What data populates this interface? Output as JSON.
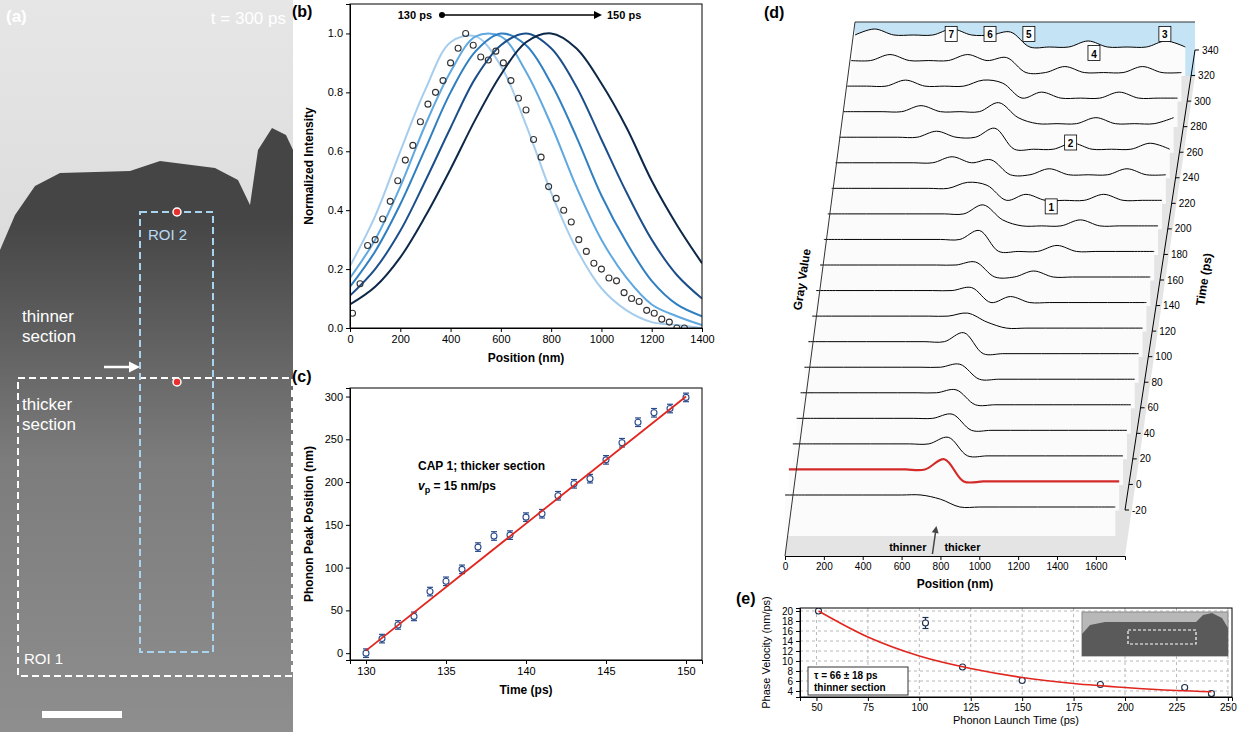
{
  "chart_data": [
    {
      "type": "image",
      "panel": "(a)",
      "annotations": [
        "t = 300 ps",
        "ROI 2",
        "thinner section",
        "thicker section",
        "ROI 1"
      ]
    },
    {
      "type": "line",
      "panel": "(b)",
      "x_label": "Position (nm)",
      "y_label": "Normalized Intensity",
      "xlim": [
        0,
        1400
      ],
      "ylim": [
        0,
        1.1
      ],
      "xticks": [
        0,
        200,
        400,
        600,
        800,
        1000,
        1200,
        1400
      ],
      "yticks": [
        {
          "value": 0,
          "label": "0.0"
        },
        0.2,
        0.4,
        0.6,
        0.8,
        {
          "value": 1,
          "label": "1.0"
        }
      ],
      "annotations": [
        "130 ps",
        "150 ps"
      ],
      "series": [
        {
          "type": "line",
          "line_style": "solid",
          "color": "#a6cdee",
          "x": [
            0,
            100,
            200,
            300,
            400,
            500,
            600,
            700,
            800,
            900,
            1000,
            1100,
            1200,
            1300,
            1400
          ],
          "values": [
            0.21,
            0.38,
            0.6,
            0.81,
            0.97,
            0.99,
            0.89,
            0.69,
            0.46,
            0.27,
            0.135,
            0.06,
            0.02,
            0.01,
            0.0
          ]
        },
        {
          "type": "line",
          "line_style": "solid",
          "color": "#5fa8e0",
          "x": [
            0,
            100,
            200,
            300,
            400,
            500,
            600,
            700,
            800,
            900,
            1000,
            1100,
            1200,
            1300,
            1400
          ],
          "values": [
            0.17,
            0.3,
            0.48,
            0.69,
            0.87,
            0.99,
            0.99,
            0.87,
            0.69,
            0.48,
            0.3,
            0.17,
            0.08,
            0.04,
            0.01
          ]
        },
        {
          "type": "line",
          "line_style": "solid",
          "color": "#2f7fc1",
          "x": [
            0,
            100,
            200,
            300,
            400,
            500,
            600,
            700,
            800,
            900,
            1000,
            1100,
            1200,
            1300,
            1400
          ],
          "values": [
            0.14,
            0.26,
            0.42,
            0.61,
            0.8,
            0.94,
            1.0,
            0.96,
            0.83,
            0.65,
            0.45,
            0.29,
            0.16,
            0.08,
            0.04
          ]
        },
        {
          "type": "line",
          "line_style": "solid",
          "color": "#1c4f8a",
          "x": [
            0,
            100,
            200,
            300,
            400,
            500,
            600,
            700,
            800,
            900,
            1000,
            1100,
            1200,
            1300,
            1400
          ],
          "values": [
            0.11,
            0.2,
            0.33,
            0.5,
            0.68,
            0.85,
            0.96,
            1.0,
            0.95,
            0.82,
            0.64,
            0.46,
            0.3,
            0.18,
            0.1
          ]
        },
        {
          "type": "line",
          "line_style": "solid",
          "color": "#0d2748",
          "x": [
            0,
            100,
            200,
            300,
            400,
            500,
            600,
            700,
            800,
            900,
            1000,
            1100,
            1200,
            1300,
            1400
          ],
          "values": [
            0.08,
            0.14,
            0.24,
            0.38,
            0.54,
            0.71,
            0.86,
            0.97,
            1.0,
            0.95,
            0.83,
            0.68,
            0.5,
            0.35,
            0.22
          ]
        },
        {
          "type": "scatter",
          "marker": "circle",
          "color": "#333333",
          "x": [
            10,
            40,
            70,
            100,
            130,
            160,
            190,
            220,
            250,
            280,
            310,
            340,
            370,
            400,
            430,
            460,
            490,
            520,
            550,
            580,
            610,
            640,
            670,
            700,
            730,
            760,
            790,
            820,
            850,
            880,
            910,
            940,
            970,
            1000,
            1030,
            1060,
            1090,
            1120,
            1150,
            1180,
            1210,
            1240,
            1270,
            1300,
            1330
          ],
          "values": [
            0.05,
            0.15,
            0.28,
            0.3,
            0.37,
            0.43,
            0.5,
            0.57,
            0.62,
            0.7,
            0.76,
            0.8,
            0.84,
            0.9,
            0.95,
            1.0,
            0.96,
            0.92,
            0.91,
            0.94,
            0.9,
            0.84,
            0.78,
            0.74,
            0.64,
            0.58,
            0.48,
            0.44,
            0.4,
            0.36,
            0.3,
            0.26,
            0.22,
            0.2,
            0.17,
            0.16,
            0.12,
            0.1,
            0.09,
            0.06,
            0.05,
            0.03,
            0.02,
            0.0,
            0.0
          ]
        }
      ]
    },
    {
      "type": "scatter",
      "panel": "(c)",
      "x_label": "Time (ps)",
      "y_label": "Phonon Peak Position (nm)",
      "xlim": [
        129,
        151
      ],
      "ylim": [
        -8,
        310
      ],
      "xticks": [
        130,
        135,
        140,
        145,
        150
      ],
      "yticks": [
        0,
        50,
        100,
        150,
        200,
        250,
        300
      ],
      "annotations": [
        "CAP 1; thicker section",
        {
          "text": "v",
          "subscript": "p",
          "suffix": " = 15 nm/ps"
        }
      ],
      "series": [
        {
          "type": "scatter",
          "marker": "circle",
          "color": "#2b4c8c",
          "x": [
            130,
            131,
            132,
            133,
            134,
            135,
            136,
            137,
            138,
            139,
            140,
            141,
            142,
            143,
            144,
            145,
            146,
            147,
            148,
            149,
            150
          ],
          "values": [
            0,
            17,
            33,
            43,
            72,
            84,
            98,
            124,
            137,
            138,
            159,
            163,
            184,
            198,
            204,
            226,
            246,
            270,
            281,
            286,
            299
          ],
          "errors": [
            5,
            5,
            5,
            5,
            5,
            5,
            5,
            5,
            5,
            5,
            5,
            5,
            5,
            5,
            5,
            5,
            5,
            5,
            5,
            5,
            5
          ]
        },
        {
          "type": "line",
          "line_style": "solid",
          "color": "#e0261e",
          "x": [
            130,
            150
          ],
          "values": [
            3,
            300
          ]
        }
      ]
    },
    {
      "type": "waterfall",
      "panel": "(d)",
      "x_label": "Position (nm)",
      "y_label": "Time (ps)",
      "z_label": "Gray Value",
      "xlim": [
        0,
        1750
      ],
      "xticks": [
        0,
        200,
        400,
        600,
        800,
        1000,
        1200,
        1400,
        1600
      ],
      "ylim": [
        -20,
        340
      ],
      "yticks": [
        -20,
        0,
        20,
        40,
        60,
        80,
        100,
        120,
        140,
        160,
        180,
        200,
        220,
        240,
        260,
        280,
        300,
        320,
        340
      ],
      "zlim": [
        0.3,
        1.3
      ],
      "x": [
        0,
        100,
        200,
        300,
        400,
        500,
        600,
        700,
        800,
        900,
        1000,
        1100,
        1200,
        1300,
        1400,
        1500,
        1600,
        1700
      ],
      "annotations": [
        "1",
        "2",
        "3",
        "4",
        "5",
        "6",
        "7",
        "thinner",
        "thicker"
      ],
      "series": [
        {
          "time": -20,
          "color": "#000000",
          "values": [
            0.55,
            0.55,
            0.55,
            0.55,
            0.55,
            0.55,
            0.55,
            0.55,
            0.48,
            0.35,
            0.35,
            0.35,
            0.35,
            0.35,
            0.35,
            0.35,
            0.35,
            0.35
          ]
        },
        {
          "time": 0,
          "color": "#d42a2a",
          "values": [
            0.55,
            0.55,
            0.55,
            0.55,
            0.55,
            0.55,
            0.55,
            0.55,
            0.72,
            0.35,
            0.35,
            0.35,
            0.35,
            0.35,
            0.35,
            0.35,
            0.35,
            0.35
          ]
        },
        {
          "time": 20,
          "color": "#000000",
          "values": [
            0.55,
            0.55,
            0.55,
            0.55,
            0.55,
            0.55,
            0.55,
            0.55,
            0.66,
            0.35,
            0.35,
            0.35,
            0.35,
            0.35,
            0.35,
            0.35,
            0.35,
            0.35
          ]
        },
        {
          "time": 40,
          "color": "#000000",
          "values": [
            0.55,
            0.55,
            0.55,
            0.55,
            0.55,
            0.55,
            0.55,
            0.55,
            0.62,
            0.35,
            0.35,
            0.35,
            0.35,
            0.35,
            0.35,
            0.35,
            0.35,
            0.35
          ]
        },
        {
          "time": 60,
          "color": "#000000",
          "values": [
            0.55,
            0.55,
            0.55,
            0.55,
            0.55,
            0.55,
            0.55,
            0.55,
            0.6,
            0.35,
            0.35,
            0.35,
            0.35,
            0.35,
            0.35,
            0.35,
            0.35,
            0.35
          ]
        },
        {
          "time": 80,
          "color": "#000000",
          "values": [
            0.55,
            0.55,
            0.55,
            0.55,
            0.55,
            0.55,
            0.55,
            0.55,
            0.6,
            0.35,
            0.35,
            0.35,
            0.35,
            0.35,
            0.35,
            0.35,
            0.35,
            0.35
          ]
        },
        {
          "time": 100,
          "color": "#000000",
          "values": [
            0.55,
            0.55,
            0.55,
            0.55,
            0.55,
            0.55,
            0.55,
            0.55,
            0.7,
            0.35,
            0.35,
            0.35,
            0.35,
            0.35,
            0.35,
            0.35,
            0.35,
            0.35
          ]
        },
        {
          "time": 120,
          "color": "#000000",
          "values": [
            0.55,
            0.55,
            0.55,
            0.55,
            0.55,
            0.55,
            0.55,
            0.55,
            0.6,
            0.45,
            0.35,
            0.35,
            0.35,
            0.35,
            0.35,
            0.35,
            0.35,
            0.35
          ]
        },
        {
          "time": 140,
          "color": "#000000",
          "values": [
            0.55,
            0.55,
            0.55,
            0.55,
            0.55,
            0.55,
            0.55,
            0.55,
            0.6,
            0.35,
            0.45,
            0.35,
            0.35,
            0.35,
            0.35,
            0.35,
            0.35,
            0.35
          ]
        },
        {
          "time": 160,
          "color": "#000000",
          "values": [
            0.55,
            0.55,
            0.55,
            0.55,
            0.55,
            0.55,
            0.55,
            0.55,
            0.6,
            0.35,
            0.35,
            0.45,
            0.35,
            0.35,
            0.35,
            0.35,
            0.35,
            0.35
          ]
        },
        {
          "time": 180,
          "color": "#000000",
          "values": [
            0.55,
            0.55,
            0.55,
            0.55,
            0.55,
            0.55,
            0.55,
            0.55,
            0.7,
            0.35,
            0.35,
            0.35,
            0.45,
            0.35,
            0.35,
            0.35,
            0.35,
            0.35
          ]
        },
        {
          "time": 200,
          "color": "#000000",
          "values": [
            0.55,
            0.55,
            0.55,
            0.55,
            0.55,
            0.55,
            0.55,
            0.55,
            0.7,
            0.45,
            0.35,
            0.35,
            0.35,
            0.45,
            0.35,
            0.35,
            0.35,
            0.35
          ]
        },
        {
          "time": 220,
          "color": "#000000",
          "values": [
            0.55,
            0.55,
            0.55,
            0.55,
            0.55,
            0.55,
            0.55,
            0.65,
            0.6,
            0.35,
            0.45,
            0.35,
            0.35,
            0.35,
            0.45,
            0.35,
            0.35,
            0.35
          ]
        },
        {
          "time": 240,
          "color": "#000000",
          "values": [
            0.55,
            0.55,
            0.55,
            0.55,
            0.55,
            0.55,
            0.65,
            0.55,
            0.6,
            0.35,
            0.35,
            0.45,
            0.35,
            0.35,
            0.35,
            0.45,
            0.35,
            0.35
          ]
        },
        {
          "time": 260,
          "color": "#000000",
          "values": [
            0.55,
            0.55,
            0.55,
            0.55,
            0.55,
            0.65,
            0.55,
            0.55,
            0.7,
            0.35,
            0.35,
            0.35,
            0.45,
            0.35,
            0.35,
            0.35,
            0.45,
            0.35
          ]
        },
        {
          "time": 280,
          "color": "#000000",
          "values": [
            0.55,
            0.55,
            0.55,
            0.55,
            0.65,
            0.55,
            0.55,
            0.55,
            0.7,
            0.45,
            0.35,
            0.35,
            0.35,
            0.45,
            0.35,
            0.35,
            0.35,
            0.45
          ]
        },
        {
          "time": 300,
          "color": "#000000",
          "values": [
            0.55,
            0.55,
            0.55,
            0.65,
            0.55,
            0.55,
            0.55,
            0.65,
            0.6,
            0.35,
            0.45,
            0.35,
            0.35,
            0.35,
            0.45,
            0.35,
            0.35,
            0.35
          ]
        },
        {
          "time": 320,
          "color": "#000000",
          "values": [
            0.55,
            0.55,
            0.65,
            0.55,
            0.55,
            0.55,
            0.65,
            0.55,
            0.6,
            0.35,
            0.35,
            0.45,
            0.35,
            0.35,
            0.35,
            0.45,
            0.35,
            0.35
          ]
        },
        {
          "time": 340,
          "color": "#000000",
          "values": [
            0.55,
            0.65,
            0.55,
            0.55,
            0.55,
            0.65,
            0.55,
            0.55,
            0.6,
            0.35,
            0.35,
            0.35,
            0.45,
            0.35,
            0.35,
            0.35,
            0.45,
            0.35
          ]
        }
      ]
    },
    {
      "type": "scatter",
      "panel": "(e)",
      "x_label": "Phonon Launch Time (ps)",
      "y_label": "Phase Velocity (nm/ps)",
      "xlim": [
        42,
        252
      ],
      "ylim": [
        2.8,
        20.6
      ],
      "grid": true,
      "xticks": [
        50,
        75,
        100,
        125,
        150,
        175,
        200,
        225,
        250
      ],
      "yticks": [
        4,
        6,
        8,
        10,
        12,
        14,
        16,
        18,
        20
      ],
      "annotations": [
        "τ = 66 ± 18 ps",
        "thinner section"
      ],
      "series": [
        {
          "type": "scatter",
          "marker": "circle",
          "color": "#1f2f4f",
          "x": [
            51,
            103,
            121,
            150,
            188,
            229,
            242
          ],
          "values": [
            20.0,
            17.6,
            8.8,
            6.1,
            5.3,
            4.7,
            3.5
          ],
          "errors": [
            0.15,
            1.1,
            0.25,
            0.15,
            0.15,
            0.3,
            0.4
          ]
        },
        {
          "type": "line",
          "line_style": "solid",
          "color": "#e0261e",
          "x": [
            51,
            75,
            100,
            125,
            150,
            175,
            200,
            225,
            242
          ],
          "values": [
            20.0,
            14.8,
            11.0,
            8.5,
            6.7,
            5.5,
            4.7,
            4.1,
            3.85
          ]
        }
      ]
    }
  ]
}
